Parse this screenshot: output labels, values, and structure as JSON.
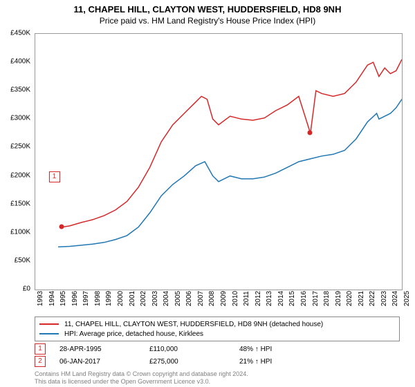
{
  "title": "11, CHAPEL HILL, CLAYTON WEST, HUDDERSFIELD, HD8 9NH",
  "subtitle": "Price paid vs. HM Land Registry's House Price Index (HPI)",
  "chart": {
    "type": "line",
    "background_color": "#ffffff",
    "grid_color": "#cccccc",
    "border_color": "#999999",
    "x_axis": {
      "min": 1993,
      "max": 2025,
      "ticks": [
        1993,
        1994,
        1995,
        1996,
        1997,
        1998,
        1999,
        2000,
        2001,
        2002,
        2003,
        2004,
        2005,
        2006,
        2007,
        2008,
        2009,
        2010,
        2011,
        2012,
        2013,
        2014,
        2015,
        2016,
        2017,
        2018,
        2019,
        2020,
        2021,
        2022,
        2023,
        2024,
        2025
      ],
      "label_fontsize": 10,
      "label_rotation": -90,
      "label_color": "#000000"
    },
    "y_axis": {
      "min": 0,
      "max": 450000,
      "tick_step": 50000,
      "tick_labels": [
        "£0",
        "£50K",
        "£100K",
        "£150K",
        "£200K",
        "£250K",
        "£300K",
        "£350K",
        "£400K",
        "£450K"
      ],
      "label_fontsize": 10,
      "label_color": "#000000"
    },
    "series": [
      {
        "name": "property",
        "label": "11, CHAPEL HILL, CLAYTON WEST, HUDDERSFIELD, HD8 9NH (detached house)",
        "color": "#d62728",
        "line_width": 1.5,
        "data": [
          [
            1995.33,
            110000
          ],
          [
            1996,
            112000
          ],
          [
            1997,
            118000
          ],
          [
            1998,
            123000
          ],
          [
            1999,
            130000
          ],
          [
            2000,
            140000
          ],
          [
            2001,
            155000
          ],
          [
            2002,
            180000
          ],
          [
            2003,
            215000
          ],
          [
            2004,
            260000
          ],
          [
            2005,
            290000
          ],
          [
            2006,
            310000
          ],
          [
            2007,
            330000
          ],
          [
            2007.5,
            340000
          ],
          [
            2008,
            335000
          ],
          [
            2008.5,
            300000
          ],
          [
            2009,
            290000
          ],
          [
            2010,
            305000
          ],
          [
            2011,
            300000
          ],
          [
            2012,
            298000
          ],
          [
            2013,
            302000
          ],
          [
            2014,
            315000
          ],
          [
            2015,
            325000
          ],
          [
            2016,
            340000
          ],
          [
            2017.02,
            275000
          ],
          [
            2017.5,
            350000
          ],
          [
            2018,
            345000
          ],
          [
            2019,
            340000
          ],
          [
            2020,
            345000
          ],
          [
            2021,
            365000
          ],
          [
            2022,
            395000
          ],
          [
            2022.5,
            400000
          ],
          [
            2023,
            375000
          ],
          [
            2023.5,
            390000
          ],
          [
            2024,
            380000
          ],
          [
            2024.5,
            385000
          ],
          [
            2025,
            405000
          ]
        ],
        "markers": [
          {
            "x": 1995.33,
            "y": 110000,
            "label": "1",
            "label_offset_x": -10,
            "label_offset_y": -80
          },
          {
            "x": 2017.02,
            "y": 275000,
            "label": "2",
            "label_offset_x": 0,
            "label_offset_y": -225
          }
        ]
      },
      {
        "name": "hpi",
        "label": "HPI: Average price, detached house, Kirklees",
        "color": "#1f77b4",
        "line_width": 1.5,
        "data": [
          [
            1995,
            75000
          ],
          [
            1996,
            76000
          ],
          [
            1997,
            78000
          ],
          [
            1998,
            80000
          ],
          [
            1999,
            83000
          ],
          [
            2000,
            88000
          ],
          [
            2001,
            95000
          ],
          [
            2002,
            110000
          ],
          [
            2003,
            135000
          ],
          [
            2004,
            165000
          ],
          [
            2005,
            185000
          ],
          [
            2006,
            200000
          ],
          [
            2007,
            218000
          ],
          [
            2007.8,
            225000
          ],
          [
            2008.5,
            200000
          ],
          [
            2009,
            190000
          ],
          [
            2010,
            200000
          ],
          [
            2011,
            195000
          ],
          [
            2012,
            195000
          ],
          [
            2013,
            198000
          ],
          [
            2014,
            205000
          ],
          [
            2015,
            215000
          ],
          [
            2016,
            225000
          ],
          [
            2017,
            230000
          ],
          [
            2018,
            235000
          ],
          [
            2019,
            238000
          ],
          [
            2020,
            245000
          ],
          [
            2021,
            265000
          ],
          [
            2022,
            295000
          ],
          [
            2022.8,
            310000
          ],
          [
            2023,
            300000
          ],
          [
            2024,
            310000
          ],
          [
            2024.5,
            320000
          ],
          [
            2025,
            335000
          ]
        ]
      }
    ]
  },
  "legend": {
    "border_color": "#888888",
    "fontsize": 10
  },
  "transactions": [
    {
      "marker": "1",
      "date": "28-APR-1995",
      "price": "£110,000",
      "delta": "48% ↑ HPI"
    },
    {
      "marker": "2",
      "date": "06-JAN-2017",
      "price": "£275,000",
      "delta": "21% ↑ HPI"
    }
  ],
  "footnote_line1": "Contains HM Land Registry data © Crown copyright and database right 2024.",
  "footnote_line2": "This data is licensed under the Open Government Licence v3.0."
}
